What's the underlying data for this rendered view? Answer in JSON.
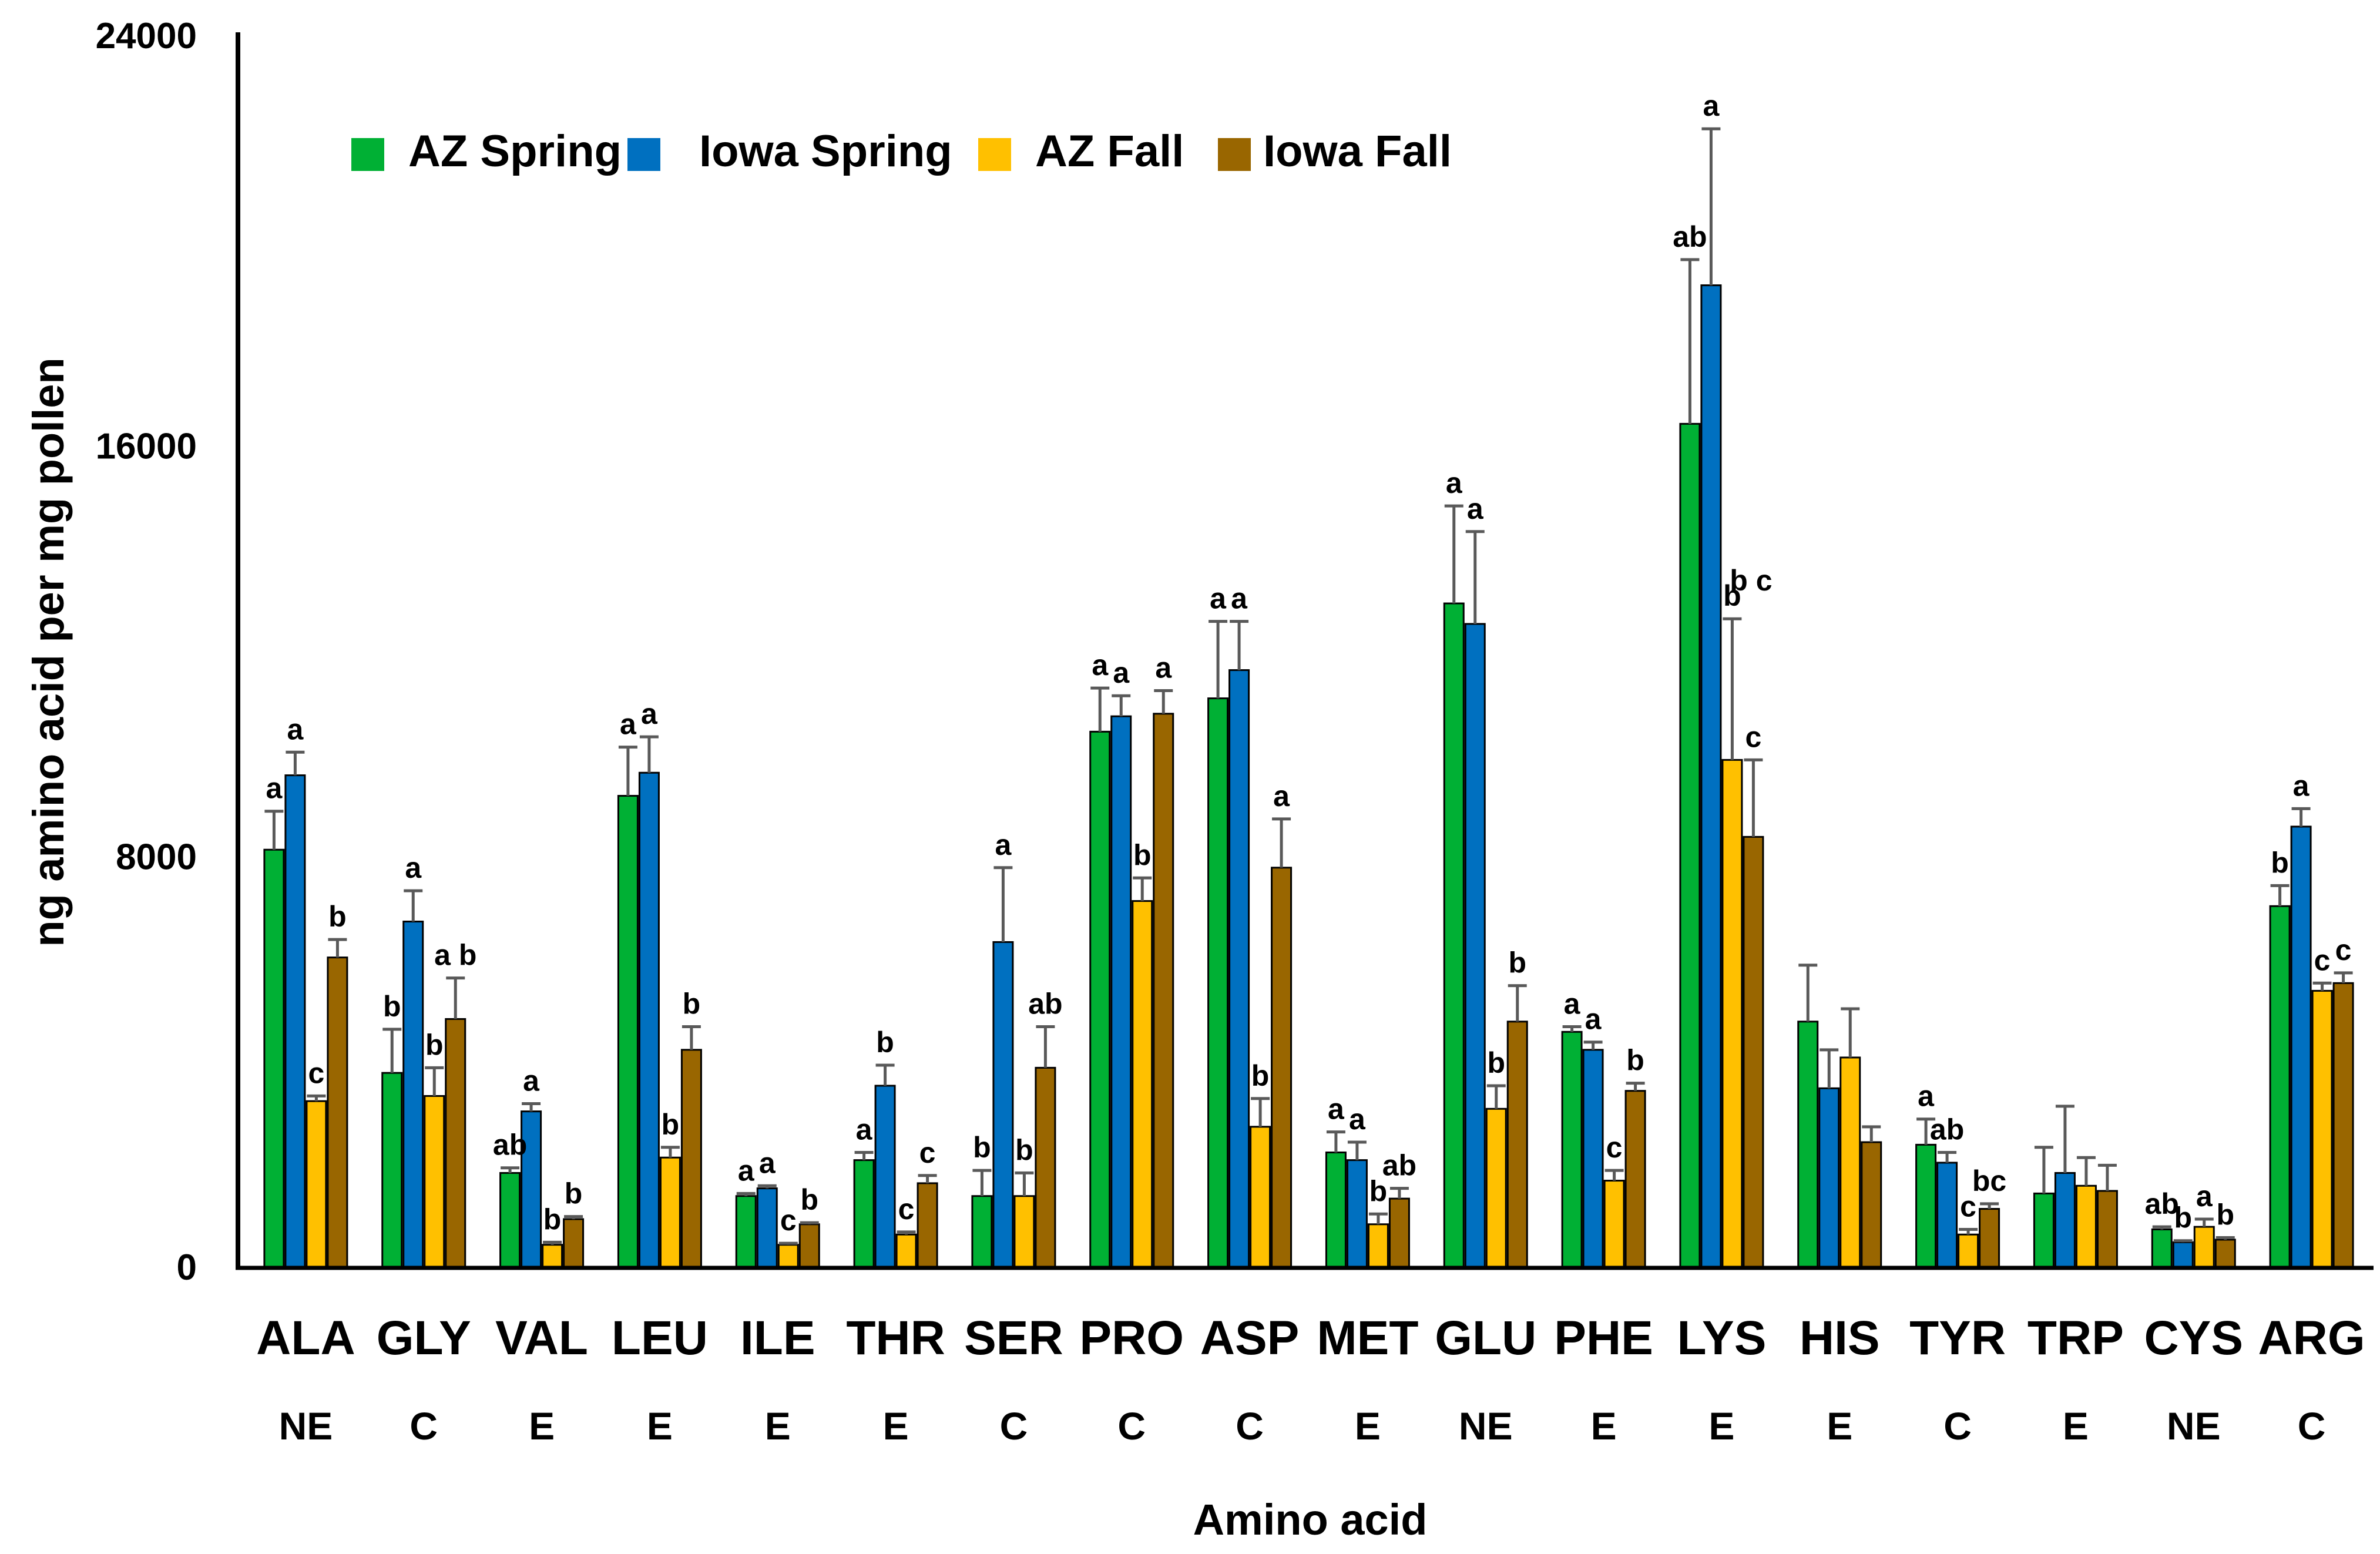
{
  "chart_data": {
    "type": "bar",
    "xlabel": "Amino acid",
    "ylabel": "ng  amino acid  per mg pollen",
    "ylim": [
      0,
      24000
    ],
    "yticks": [
      "0",
      "8000",
      "16000",
      "24000"
    ],
    "legend_position": "top-left",
    "categories": [
      "ALA",
      "GLY",
      "VAL",
      "LEU",
      "ILE",
      "THR",
      "SER",
      "PRO",
      "ASP",
      "MET",
      "GLU",
      "PHE",
      "LYS",
      "HIS",
      "TYR",
      "TRP",
      "CYS",
      "ARG"
    ],
    "classes": [
      "NE",
      "C",
      "E",
      "E",
      "E",
      "E",
      "C",
      "C",
      "C",
      "E",
      "NE",
      "E",
      "E",
      "E",
      "C",
      "E",
      "NE",
      "C"
    ],
    "series": [
      {
        "name": "AZ Spring",
        "color": "#00b034",
        "values": [
          8150,
          3800,
          1850,
          9200,
          1400,
          2100,
          1400,
          10450,
          11100,
          2250,
          12950,
          4600,
          16450,
          4800,
          2400,
          1450,
          750,
          7050
        ],
        "errors": [
          750,
          850,
          100,
          950,
          50,
          150,
          500,
          850,
          1500,
          400,
          1900,
          100,
          3200,
          1100,
          500,
          900,
          50,
          400
        ],
        "sig": [
          "a",
          "b",
          "ab",
          "a",
          "a",
          "a",
          "b",
          "a",
          "a",
          "a",
          "a",
          "a",
          "ab",
          "",
          "a",
          "",
          "ab",
          "b"
        ]
      },
      {
        "name": "Iowa Spring",
        "color": "#0070c0",
        "values": [
          9600,
          6750,
          3050,
          9650,
          1550,
          3550,
          6350,
          10750,
          11650,
          2100,
          12550,
          4250,
          19150,
          3500,
          2050,
          1850,
          500,
          8600
        ],
        "errors": [
          450,
          600,
          150,
          700,
          50,
          400,
          1450,
          400,
          950,
          350,
          1800,
          150,
          3050,
          750,
          200,
          1300,
          30,
          350
        ],
        "sig": [
          "a",
          "a",
          "a",
          "a",
          "a",
          "b",
          "a",
          "a",
          "a",
          "a",
          "a",
          "a",
          "a",
          "",
          "ab",
          "",
          "b",
          "a"
        ]
      },
      {
        "name": "AZ Fall",
        "color": "#ffc000",
        "values": [
          3250,
          3350,
          450,
          2150,
          450,
          650,
          1400,
          7150,
          2750,
          850,
          3100,
          1700,
          9900,
          4100,
          650,
          1600,
          800,
          5400
        ],
        "errors": [
          100,
          550,
          50,
          200,
          30,
          50,
          450,
          450,
          550,
          200,
          450,
          200,
          2750,
          950,
          100,
          550,
          150,
          150
        ],
        "sig": [
          "c",
          "b",
          "b",
          "b",
          "c",
          "c",
          "b",
          "b",
          "b",
          "b",
          "b",
          "c",
          "b",
          "",
          "c",
          "",
          "a",
          "c"
        ]
      },
      {
        "name": "Iowa Fall",
        "color": "#996600",
        "values": [
          6050,
          4850,
          950,
          4250,
          850,
          1650,
          3900,
          10800,
          7800,
          1350,
          4800,
          3450,
          8400,
          2450,
          1150,
          1500,
          550,
          5550
        ],
        "errors": [
          350,
          800,
          50,
          450,
          30,
          150,
          800,
          450,
          950,
          200,
          700,
          150,
          1500,
          300,
          100,
          500,
          40,
          200
        ],
        "sig": [
          "b",
          "a b",
          "b",
          "b",
          "b",
          "c",
          "ab",
          "a",
          "a",
          "ab",
          "b",
          "b",
          "c",
          "",
          "bc",
          "",
          "b",
          "c"
        ]
      }
    ],
    "extra_labels": [
      {
        "text": "b c",
        "category": "LYS",
        "value": 13200
      }
    ]
  }
}
